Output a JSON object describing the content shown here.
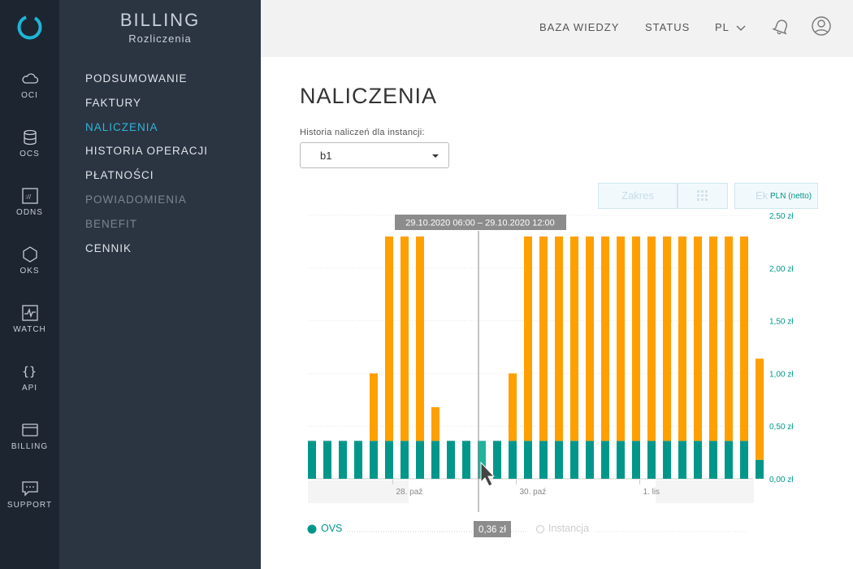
{
  "rail": {
    "items": [
      {
        "label": "OCI",
        "icon": "cloud-icon"
      },
      {
        "label": "OCS",
        "icon": "database-icon"
      },
      {
        "label": "ODNS",
        "icon": "dns-icon"
      },
      {
        "label": "OKS",
        "icon": "hexagon-icon"
      },
      {
        "label": "WATCH",
        "icon": "monitor-icon"
      },
      {
        "label": "API",
        "icon": "braces-icon"
      },
      {
        "label": "BILLING",
        "icon": "wallet-icon"
      },
      {
        "label": "SUPPORT",
        "icon": "chat-icon"
      }
    ]
  },
  "subnav": {
    "title": "BILLING",
    "subtitle": "Rozliczenia",
    "items": [
      {
        "label": "PODSUMOWANIE",
        "state": "normal"
      },
      {
        "label": "FAKTURY",
        "state": "normal"
      },
      {
        "label": "NALICZENIA",
        "state": "active"
      },
      {
        "label": "HISTORIA OPERACJI",
        "state": "normal"
      },
      {
        "label": "PŁATNOŚCI",
        "state": "normal"
      },
      {
        "label": "POWIADOMIENIA",
        "state": "disabled"
      },
      {
        "label": "BENEFIT",
        "state": "disabled"
      },
      {
        "label": "CENNIK",
        "state": "normal"
      }
    ]
  },
  "topbar": {
    "knowledge_base": "BAZA WIEDZY",
    "status": "STATUS",
    "language": "PL"
  },
  "main": {
    "title": "NALICZENIA",
    "instance_label": "Historia naliczeń dla instancji:",
    "instance_value": "b1",
    "range_button": "Zakres",
    "export_button": "Ek"
  },
  "colors": {
    "ovs": "#00978a",
    "instance": "#ff9f00",
    "accent": "#2fb5d8"
  },
  "chart_data": {
    "type": "bar",
    "stacked": true,
    "ylabel": "PLN (netto)",
    "ylim": [
      0,
      2.5
    ],
    "y_ticks": [
      "0,00 zł",
      "0,50 zł",
      "1,00 zł",
      "1,50 zł",
      "2,00 zł",
      "2,50 zł"
    ],
    "x_tick_labels": [
      {
        "label": "28. paź",
        "index": 5.5
      },
      {
        "label": "30. paź",
        "index": 13.5
      },
      {
        "label": "1. lis",
        "index": 21.5
      }
    ],
    "series": [
      {
        "name": "OVS",
        "values": [
          0.36,
          0.36,
          0.36,
          0.36,
          0.36,
          0.36,
          0.36,
          0.36,
          0.36,
          0.36,
          0.36,
          0.36,
          0.36,
          0.36,
          0.36,
          0.36,
          0.36,
          0.36,
          0.36,
          0.36,
          0.36,
          0.36,
          0.36,
          0.36,
          0.36,
          0.36,
          0.36,
          0.36,
          0.36,
          0.18
        ]
      },
      {
        "name": "Instancja",
        "values": [
          0,
          0,
          0,
          0,
          0.64,
          1.94,
          1.94,
          1.94,
          0.32,
          0,
          0,
          0,
          0,
          0.64,
          1.94,
          1.94,
          1.94,
          1.94,
          1.94,
          1.94,
          1.94,
          1.94,
          1.94,
          1.94,
          1.94,
          1.94,
          1.94,
          1.94,
          1.94,
          0.96
        ]
      }
    ],
    "hover_index": 11,
    "tooltip_range": "29.10.2020 06:00 – 29.10.2020 12:00",
    "tooltip_value": "0,36 zł",
    "legend": [
      "OVS",
      "Instancja"
    ]
  }
}
